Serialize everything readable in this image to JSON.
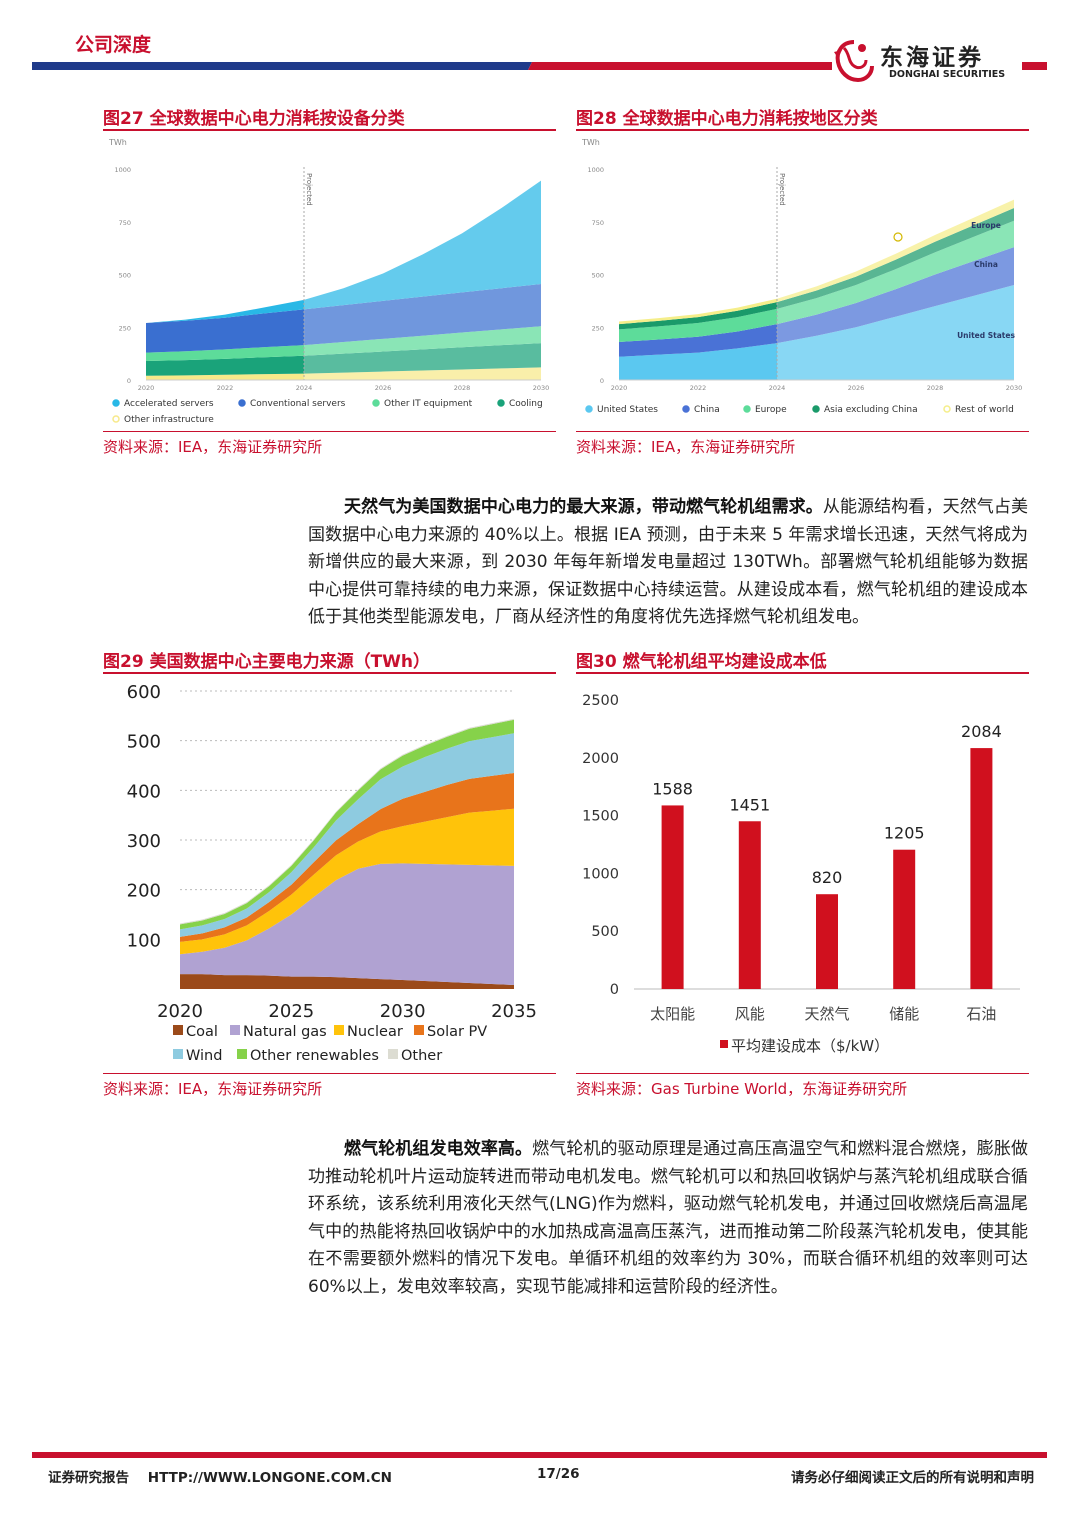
{
  "header": {
    "title": "公司深度",
    "logo_cn": "东海证券",
    "logo_en": "DONGHAI SECURITIES",
    "colors": {
      "red": "#c8102e",
      "blue": "#1f3a8a"
    }
  },
  "figures": [
    {
      "id": "fig27",
      "title": "图27  全球数据中心电力消耗按设备分类",
      "source": "资料来源：IEA，东海证券研究所"
    },
    {
      "id": "fig28",
      "title": "图28  全球数据中心电力消耗按地区分类",
      "source": "资料来源：IEA，东海证券研究所"
    },
    {
      "id": "fig29",
      "title": "图29  美国数据中心主要电力来源（TWh）",
      "source": "资料来源：IEA，东海证券研究所"
    },
    {
      "id": "fig30",
      "title": "图30  燃气轮机组平均建设成本低",
      "source": "资料来源：Gas Turbine World，东海证券研究所"
    }
  ],
  "paragraphs": {
    "p1_bold": "天然气为美国数据中心电力的最大来源，带动燃气轮机组需求。",
    "p1_text": "从能源结构看，天然气占美国数据中心电力来源的 40%以上。根据 IEA 预测，由于未来 5 年需求增长迅速，天然气将成为新增供应的最大来源，到 2030 年每年新增发电量超过 130TWh。部署燃气轮机组能够为数据中心提供可靠持续的电力来源，保证数据中心持续运营。从建设成本看，燃气轮机组的建设成本低于其他类型能源发电，厂商从经济性的角度将优先选择燃气轮机组发电。",
    "p2_bold": "燃气轮机组发电效率高。",
    "p2_text": "燃气轮机的驱动原理是通过高压高温空气和燃料混合燃烧，膨胀做功推动轮机叶片运动旋转进而带动电机发电。燃气轮机可以和热回收锅炉与蒸汽轮机组成联合循环系统，该系统利用液化天然气(LNG)作为燃料，驱动燃气轮机发电，并通过回收燃烧后高温尾气中的热能将热回收锅炉中的水加热成高温高压蒸汽，进而推动第二阶段蒸汽轮机发电，使其能在不需要额外燃料的情况下发电。单循环机组的效率约为 30%，而联合循环机组的效率则可达 60%以上，发电效率较高，实现节能减排和运营阶段的经济性。"
  },
  "chart_data": [
    {
      "type": "area",
      "id": "fig27",
      "ylabel": "TWh",
      "yticks": [
        0,
        250,
        500,
        750,
        1000
      ],
      "ylim": [
        0,
        1000
      ],
      "xticks": [
        "2020",
        "2022",
        "2024",
        "2026",
        "2028",
        "2030"
      ],
      "x": [
        2020,
        2021,
        2022,
        2023,
        2024,
        2025,
        2026,
        2027,
        2028,
        2029,
        2030
      ],
      "projected_label": "Projected",
      "series": [
        {
          "name": "Other infrastructure",
          "color": "#f7e98a",
          "values": [
            20,
            22,
            25,
            28,
            30,
            35,
            40,
            45,
            50,
            55,
            60
          ]
        },
        {
          "name": "Cooling",
          "color": "#1aa37a",
          "values": [
            70,
            72,
            75,
            80,
            85,
            90,
            95,
            100,
            105,
            110,
            115
          ]
        },
        {
          "name": "Other IT equipment",
          "color": "#5ddc9a",
          "values": [
            40,
            42,
            45,
            48,
            50,
            55,
            60,
            65,
            70,
            75,
            80
          ]
        },
        {
          "name": "Conventional servers",
          "color": "#3a6fd0",
          "values": [
            140,
            145,
            150,
            160,
            170,
            175,
            180,
            185,
            190,
            195,
            200
          ]
        },
        {
          "name": "Accelerated servers",
          "color": "#29b8e6",
          "values": [
            0,
            5,
            15,
            28,
            45,
            80,
            130,
            200,
            280,
            380,
            490
          ]
        }
      ],
      "legend": [
        "Accelerated servers",
        "Conventional servers",
        "Other IT equipment",
        "Cooling",
        "Other infrastructure"
      ]
    },
    {
      "type": "area",
      "id": "fig28",
      "ylabel": "TWh",
      "yticks": [
        0,
        250,
        500,
        750,
        1000
      ],
      "ylim": [
        0,
        1000
      ],
      "xticks": [
        "2020",
        "2022",
        "2024",
        "2026",
        "2028",
        "2030"
      ],
      "x": [
        2020,
        2021,
        2022,
        2023,
        2024,
        2025,
        2026,
        2027,
        2028,
        2029,
        2030
      ],
      "projected_label": "Projected",
      "series": [
        {
          "name": "United States",
          "color": "#5bc8f0",
          "values": [
            110,
            120,
            130,
            150,
            175,
            210,
            250,
            300,
            350,
            400,
            450
          ]
        },
        {
          "name": "China",
          "color": "#4a72d6",
          "values": [
            70,
            72,
            75,
            80,
            90,
            100,
            115,
            130,
            150,
            165,
            180
          ]
        },
        {
          "name": "Europe",
          "color": "#5ddc9a",
          "values": [
            60,
            62,
            65,
            68,
            72,
            78,
            85,
            95,
            105,
            115,
            125
          ]
        },
        {
          "name": "Asia excluding China",
          "color": "#1a9a6a",
          "values": [
            25,
            26,
            28,
            30,
            32,
            36,
            40,
            45,
            50,
            55,
            60
          ]
        },
        {
          "name": "Rest of world",
          "color": "#f5ee8a",
          "values": [
            12,
            13,
            14,
            15,
            16,
            20,
            24,
            28,
            32,
            36,
            40
          ]
        }
      ],
      "annotations": [
        "Europe",
        "China",
        "United States"
      ],
      "legend": [
        "United States",
        "China",
        "Europe",
        "Asia excluding China",
        "Rest of world"
      ]
    },
    {
      "type": "area",
      "id": "fig29",
      "yticks": [
        100,
        200,
        300,
        400,
        500,
        600
      ],
      "ylim": [
        0,
        600
      ],
      "xticks": [
        "2020",
        "2025",
        "2030",
        "2035"
      ],
      "x": [
        2020,
        2021,
        2022,
        2023,
        2024,
        2025,
        2026,
        2027,
        2028,
        2029,
        2030,
        2031,
        2032,
        2033,
        2034,
        2035
      ],
      "series": [
        {
          "name": "Coal",
          "color": "#9b4a1a",
          "values": [
            30,
            30,
            28,
            28,
            27,
            25,
            25,
            24,
            22,
            20,
            18,
            16,
            14,
            12,
            10,
            8
          ]
        },
        {
          "name": "Natural gas",
          "color": "#b0a2d2",
          "values": [
            40,
            45,
            55,
            70,
            95,
            125,
            160,
            195,
            220,
            232,
            235,
            236,
            237,
            238,
            239,
            240
          ]
        },
        {
          "name": "Nuclear",
          "color": "#ffc30a",
          "values": [
            25,
            25,
            27,
            30,
            35,
            40,
            45,
            50,
            55,
            65,
            75,
            85,
            95,
            105,
            110,
            115
          ]
        },
        {
          "name": "Solar PV",
          "color": "#e8741b",
          "values": [
            10,
            12,
            14,
            16,
            18,
            20,
            25,
            30,
            35,
            45,
            55,
            60,
            65,
            68,
            70,
            72
          ]
        },
        {
          "name": "Wind",
          "color": "#8ecbe0",
          "values": [
            15,
            16,
            17,
            18,
            20,
            25,
            30,
            40,
            50,
            60,
            65,
            70,
            73,
            76,
            78,
            80
          ]
        },
        {
          "name": "Other renewables",
          "color": "#86d24a",
          "values": [
            10,
            10,
            10,
            11,
            12,
            13,
            14,
            16,
            18,
            20,
            22,
            23,
            24,
            25,
            26,
            27
          ]
        },
        {
          "name": "Other",
          "color": "#dcdcd2",
          "values": [
            2,
            2,
            2,
            2,
            2,
            2,
            2,
            2,
            2,
            2,
            2,
            2,
            2,
            2,
            2,
            2
          ]
        }
      ],
      "legend": [
        "Coal",
        "Natural gas",
        "Nuclear",
        "Solar PV",
        "Wind",
        "Other renewables",
        "Other"
      ]
    },
    {
      "type": "bar",
      "id": "fig30",
      "categories": [
        "太阳能",
        "风能",
        "天然气",
        "储能",
        "石油"
      ],
      "values": [
        1588,
        1451,
        820,
        1205,
        2084
      ],
      "value_labels": [
        "1588",
        "1451",
        "820",
        "1205",
        "2084"
      ],
      "yticks": [
        "0",
        "500",
        "1000",
        "1500",
        "2000",
        "2500"
      ],
      "ylim": [
        0,
        2500
      ],
      "legend": "平均建设成本（$/kW）",
      "color": "#d0101e"
    }
  ],
  "footer": {
    "left": "证券研究报告    HTTP://WWW.LONGONE.COM.CN",
    "page": "17/26",
    "right": "请务必仔细阅读正文后的所有说明和声明"
  }
}
